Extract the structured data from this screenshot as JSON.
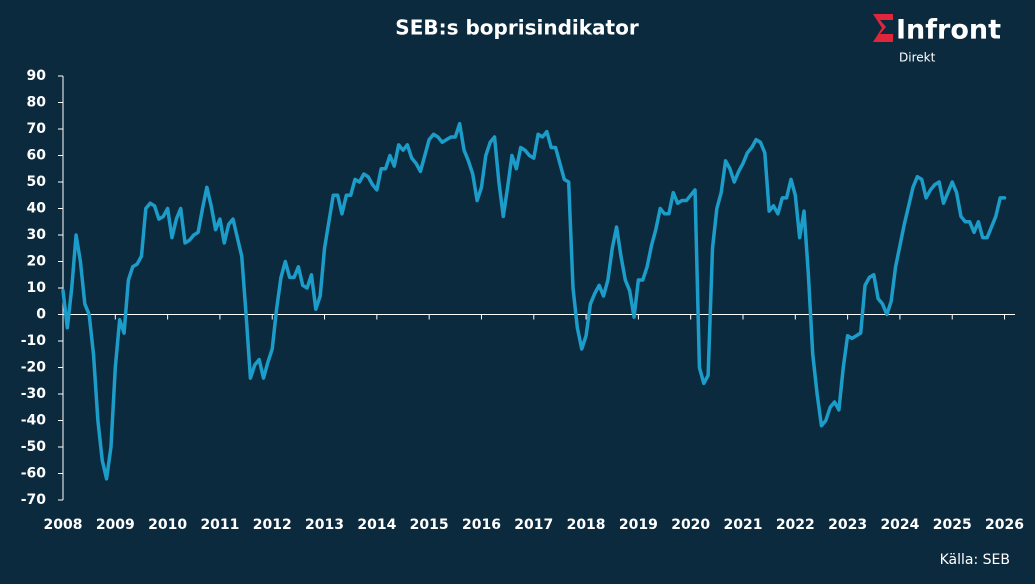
{
  "chart_data": {
    "type": "line",
    "title": "SEB:s boprisindikator",
    "source": "Källa: SEB",
    "logo": {
      "name": "Infront",
      "sub": "Direkt"
    },
    "x": [
      2008,
      2008.083,
      2008.167,
      2008.25,
      2008.333,
      2008.417,
      2008.5,
      2008.583,
      2008.667,
      2008.75,
      2008.833,
      2008.917,
      2009,
      2009.083,
      2009.167,
      2009.25,
      2009.333,
      2009.417,
      2009.5,
      2009.583,
      2009.667,
      2009.75,
      2009.833,
      2009.917,
      2010,
      2010.083,
      2010.167,
      2010.25,
      2010.333,
      2010.417,
      2010.5,
      2010.583,
      2010.667,
      2010.75,
      2010.833,
      2010.917,
      2011,
      2011.083,
      2011.167,
      2011.25,
      2011.333,
      2011.417,
      2011.5,
      2011.583,
      2011.667,
      2011.75,
      2011.833,
      2011.917,
      2012,
      2012.083,
      2012.167,
      2012.25,
      2012.333,
      2012.417,
      2012.5,
      2012.583,
      2012.667,
      2012.75,
      2012.833,
      2012.917,
      2013,
      2013.083,
      2013.167,
      2013.25,
      2013.333,
      2013.417,
      2013.5,
      2013.583,
      2013.667,
      2013.75,
      2013.833,
      2013.917,
      2014,
      2014.083,
      2014.167,
      2014.25,
      2014.333,
      2014.417,
      2014.5,
      2014.583,
      2014.667,
      2014.75,
      2014.833,
      2014.917,
      2015,
      2015.083,
      2015.167,
      2015.25,
      2015.333,
      2015.417,
      2015.5,
      2015.583,
      2015.667,
      2015.75,
      2015.833,
      2015.917,
      2016,
      2016.083,
      2016.167,
      2016.25,
      2016.333,
      2016.417,
      2016.5,
      2016.583,
      2016.667,
      2016.75,
      2016.833,
      2016.917,
      2017,
      2017.083,
      2017.167,
      2017.25,
      2017.333,
      2017.417,
      2017.5,
      2017.583,
      2017.667,
      2017.75,
      2017.833,
      2017.917,
      2018,
      2018.083,
      2018.167,
      2018.25,
      2018.333,
      2018.417,
      2018.5,
      2018.583,
      2018.667,
      2018.75,
      2018.833,
      2018.917,
      2019,
      2019.083,
      2019.167,
      2019.25,
      2019.333,
      2019.417,
      2019.5,
      2019.583,
      2019.667,
      2019.75,
      2019.833,
      2019.917,
      2020,
      2020.083,
      2020.167,
      2020.25,
      2020.333,
      2020.417,
      2020.5,
      2020.583,
      2020.667,
      2020.75,
      2020.833,
      2020.917,
      2021,
      2021.083,
      2021.167,
      2021.25,
      2021.333,
      2021.417,
      2021.5,
      2021.583,
      2021.667,
      2021.75,
      2021.833,
      2021.917,
      2022,
      2022.083,
      2022.167,
      2022.25,
      2022.333,
      2022.417,
      2022.5,
      2022.583,
      2022.667,
      2022.75,
      2022.833,
      2022.917,
      2023,
      2023.083,
      2023.167,
      2023.25,
      2023.333,
      2023.417,
      2023.5,
      2023.583,
      2023.667,
      2023.75,
      2023.833,
      2023.917,
      2024,
      2024.083,
      2024.167,
      2024.25,
      2024.333,
      2024.417,
      2024.5,
      2024.583,
      2024.667,
      2024.75,
      2024.833,
      2024.917,
      2025,
      2025.083,
      2025.167,
      2025.25,
      2025.333,
      2025.417,
      2025.5,
      2025.583,
      2025.667,
      2025.75,
      2025.833,
      2025.917,
      2026
    ],
    "series": [
      {
        "color": "#1c9cc8",
        "values": [
          9,
          -5,
          10,
          30,
          20,
          4,
          0,
          -15,
          -40,
          -55,
          -62,
          -50,
          -20,
          -2,
          -7,
          13,
          18,
          19,
          22,
          40,
          42,
          41,
          36,
          37,
          40,
          29,
          36,
          40,
          27,
          28,
          30,
          31,
          40,
          48,
          41,
          32,
          36,
          27,
          34,
          36,
          29,
          22,
          0,
          -24,
          -19,
          -17,
          -24,
          -18,
          -13,
          2,
          14,
          20,
          14,
          14,
          18,
          11,
          10,
          15,
          2,
          7,
          25,
          35,
          45,
          45,
          38,
          45,
          45,
          51,
          50,
          53,
          52,
          49,
          47,
          55,
          55,
          60,
          56,
          64,
          62,
          64,
          59,
          57,
          54,
          60,
          66,
          68,
          67,
          65,
          66,
          67,
          67,
          72,
          62,
          58,
          53,
          43,
          48,
          60,
          65,
          67,
          50,
          37,
          48,
          60,
          55,
          63,
          62,
          60,
          59,
          68,
          67,
          69,
          63,
          63,
          57,
          51,
          50,
          10,
          -5,
          -13,
          -8,
          4,
          8,
          11,
          7,
          13,
          25,
          33,
          22,
          13,
          9,
          -1,
          13,
          13,
          18,
          26,
          32,
          40,
          38,
          38,
          46,
          42,
          43,
          43,
          45,
          47,
          -20,
          -26,
          -23,
          25,
          40,
          46,
          58,
          55,
          50,
          54,
          57,
          61,
          63,
          66,
          65,
          61,
          39,
          41,
          38,
          44,
          44,
          51,
          45,
          29,
          39,
          15,
          -15,
          -30,
          -42,
          -40,
          -35,
          -33,
          -36,
          -20,
          -8,
          -9,
          -8,
          -7,
          11,
          14,
          15,
          6,
          4,
          0,
          5,
          18,
          26,
          34,
          41,
          48,
          52,
          51,
          44,
          47,
          49,
          50,
          42,
          46,
          50,
          46,
          37,
          35,
          35,
          31,
          35,
          29,
          29,
          33,
          37,
          44,
          44
        ]
      }
    ],
    "xlim": [
      2008,
      2026.2
    ],
    "xticks": [
      2008,
      2009,
      2010,
      2011,
      2012,
      2013,
      2014,
      2015,
      2016,
      2017,
      2018,
      2019,
      2020,
      2021,
      2022,
      2023,
      2024,
      2025,
      2026
    ],
    "ylim": [
      -70,
      90
    ],
    "yticks": [
      -70,
      -60,
      -50,
      -40,
      -30,
      -20,
      -10,
      0,
      10,
      20,
      30,
      40,
      50,
      60,
      70,
      80,
      90
    ]
  }
}
